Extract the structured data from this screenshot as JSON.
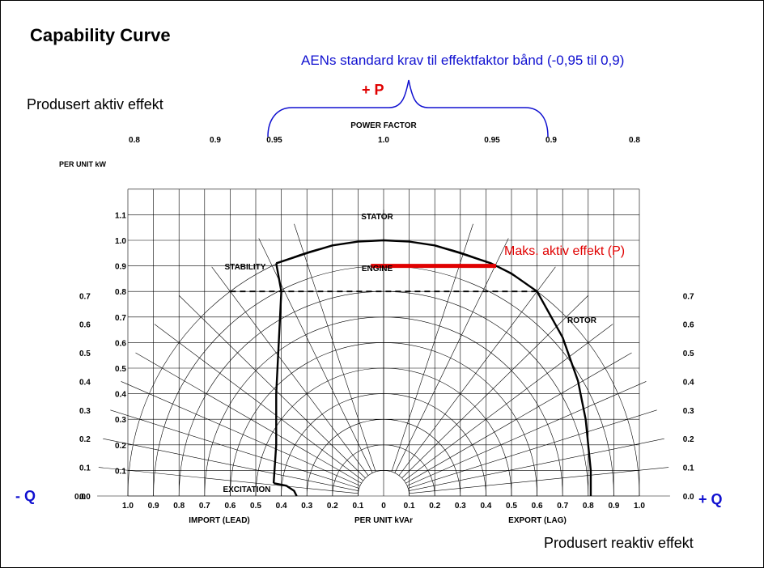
{
  "header": {
    "title": "Capability Curve",
    "note_band": "AENs standard krav til effektfaktor bånd (-0,95 til 0,9)",
    "plus_p": "+ P",
    "y_side_label": "Produsert aktiv effekt",
    "x_side_label": "Produsert reaktiv effekt",
    "minus_q": "- Q",
    "plus_q": "+ Q",
    "max_label": "Maks. aktiv effekt (P)"
  },
  "colors": {
    "grid": "#000000",
    "band_brace": "#1010d0",
    "max_line": "#e00000"
  },
  "chart_data": {
    "type": "line",
    "title": "",
    "xlabel": "PER UNIT kVAr",
    "ylabel": "PER UNIT kW",
    "top_label": "POWER FACTOR",
    "xlabel_left": "IMPORT (LEAD)",
    "xlabel_right": "EXPORT (LAG)",
    "xlim": [
      -1.0,
      1.0
    ],
    "ylim": [
      0.0,
      1.2
    ],
    "grid": true,
    "x_ticks": [
      -1.0,
      -0.9,
      -0.8,
      -0.7,
      -0.6,
      -0.5,
      -0.4,
      -0.3,
      -0.2,
      -0.1,
      0,
      0.1,
      0.2,
      0.3,
      0.4,
      0.5,
      0.6,
      0.7,
      0.8,
      0.9,
      1.0
    ],
    "x_tick_labels": [
      "1.0",
      "0.9",
      "0.8",
      "0.7",
      "0.6",
      "0.5",
      "0.4",
      "0.3",
      "0.2",
      "0.1",
      "0",
      "0.1",
      "0.2",
      "0.3",
      "0.4",
      "0.5",
      "0.6",
      "0.7",
      "0.8",
      "0.9",
      "1.0"
    ],
    "y_ticks": [
      0.1,
      0.2,
      0.3,
      0.4,
      0.5,
      0.6,
      0.7,
      0.8,
      0.9,
      1.0,
      1.1
    ],
    "y_tick_labels": [
      "0.1",
      "0.2",
      "0.3",
      "0.4",
      "0.5",
      "0.6",
      "0.7",
      "0.8",
      "0.9",
      "1.0",
      "1.1"
    ],
    "y_zero_label": "0.0",
    "side_pf_labels": [
      "0.7",
      "0.6",
      "0.5",
      "0.4",
      "0.3",
      "0.2",
      "0.1",
      "0.0"
    ],
    "side_pf_values": [
      0.7,
      0.6,
      0.5,
      0.4,
      0.3,
      0.2,
      0.1,
      0.0
    ],
    "top_pf_labels": [
      {
        "label": "0.8",
        "pf": 0.8,
        "side": "lead"
      },
      {
        "label": "0.9",
        "pf": 0.9,
        "side": "lead"
      },
      {
        "label": "0.95",
        "pf": 0.95,
        "side": "lead"
      },
      {
        "label": "1.0",
        "pf": 1.0,
        "side": "unity"
      },
      {
        "label": "0.95",
        "pf": 0.95,
        "side": "lag"
      },
      {
        "label": "0.9",
        "pf": 0.9,
        "side": "lag"
      },
      {
        "label": "0.8",
        "pf": 0.8,
        "side": "lag"
      }
    ],
    "region_labels": [
      "STATOR",
      "ENGINE",
      "STABILITY",
      "ROTOR",
      "EXCITATION"
    ],
    "circle_radii": [
      0.1,
      0.2,
      0.3,
      0.4,
      0.5,
      0.6,
      0.7,
      0.8,
      0.9,
      1.0
    ],
    "series": [
      {
        "name": "STATOR",
        "x": [
          -0.42,
          -0.3,
          -0.2,
          -0.1,
          0.0,
          0.1,
          0.2,
          0.3,
          0.42,
          0.5,
          0.6
        ],
        "y": [
          0.91,
          0.95,
          0.98,
          0.995,
          1.0,
          0.995,
          0.98,
          0.95,
          0.91,
          0.87,
          0.8
        ]
      },
      {
        "name": "ENGINE",
        "x": [
          -0.6,
          0.6
        ],
        "y": [
          0.8,
          0.8
        ]
      },
      {
        "name": "ROTOR",
        "x": [
          0.6,
          0.7,
          0.76,
          0.79,
          0.8,
          0.81,
          0.81
        ],
        "y": [
          0.8,
          0.62,
          0.45,
          0.3,
          0.2,
          0.1,
          0.0
        ]
      },
      {
        "name": "STABILITY",
        "x": [
          -0.42,
          -0.4,
          -0.41,
          -0.42,
          -0.42,
          -0.43
        ],
        "y": [
          0.91,
          0.8,
          0.6,
          0.4,
          0.2,
          0.05
        ]
      },
      {
        "name": "EXCITATION",
        "x": [
          -0.43,
          -0.38,
          -0.35,
          -0.34
        ],
        "y": [
          0.05,
          0.04,
          0.02,
          0.0
        ]
      },
      {
        "name": "Maks. aktiv effekt (P)",
        "x": [
          -0.05,
          0.44
        ],
        "y": [
          0.9,
          0.9
        ]
      }
    ]
  }
}
